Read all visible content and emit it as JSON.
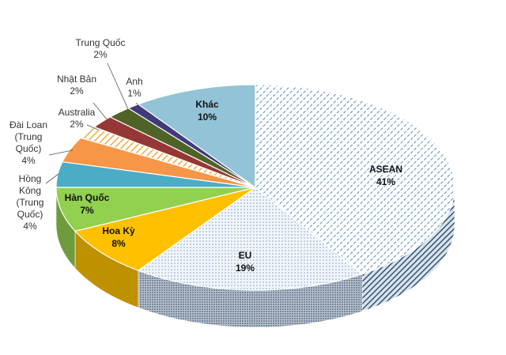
{
  "chart_data": {
    "type": "pie",
    "title": "",
    "slices": [
      {
        "label": "ASEAN",
        "pct_label": "41%",
        "value": 41,
        "color": "#5b8db8",
        "pattern": "diag-dash",
        "label_style": "inside"
      },
      {
        "label": "EU",
        "pct_label": "19%",
        "value": 19,
        "color": "#9db4d6",
        "pattern": "dots",
        "label_style": "inside"
      },
      {
        "label": "Hoa Kỳ",
        "pct_label": "8%",
        "value": 8,
        "color": "#ffc000",
        "pattern": "none",
        "label_style": "inside"
      },
      {
        "label": "Hàn Quốc",
        "pct_label": "7%",
        "value": 7,
        "color": "#92d050",
        "pattern": "none",
        "label_style": "inside"
      },
      {
        "label": "Hồng Kông (Trung Quốc)",
        "label_lines": [
          "Hồng",
          "Kông",
          "(Trung",
          "Quốc)"
        ],
        "pct_label": "4%",
        "value": 4,
        "color": "#4bacc6",
        "pattern": "none",
        "label_style": "outside"
      },
      {
        "label": "Đài Loan (Trung Quốc)",
        "label_lines": [
          "Đài Loan",
          "(Trung",
          "Quốc)"
        ],
        "pct_label": "4%",
        "value": 4,
        "color": "#f79646",
        "pattern": "none",
        "label_style": "outside"
      },
      {
        "label": "Australia",
        "label_lines": [
          "Australia"
        ],
        "pct_label": "2%",
        "value": 2,
        "color": "#f7c35a",
        "pattern": "stripes",
        "label_style": "outside"
      },
      {
        "label": "Nhật Bản",
        "label_lines": [
          "Nhật Bản"
        ],
        "pct_label": "2%",
        "value": 2,
        "color": "#953735",
        "pattern": "none",
        "label_style": "outside"
      },
      {
        "label": "Trung Quốc",
        "label_lines": [
          "Trung Quốc"
        ],
        "pct_label": "2%",
        "value": 2,
        "color": "#4f6228",
        "pattern": "none",
        "label_style": "outside"
      },
      {
        "label": "Anh",
        "label_lines": [
          "Anh"
        ],
        "pct_label": "1%",
        "value": 1,
        "color": "#403a7a",
        "pattern": "none",
        "label_style": "outside"
      },
      {
        "label": "Khác",
        "pct_label": "10%",
        "value": 10,
        "color": "#93c3d6",
        "pattern": "none",
        "label_style": "inside"
      }
    ]
  }
}
